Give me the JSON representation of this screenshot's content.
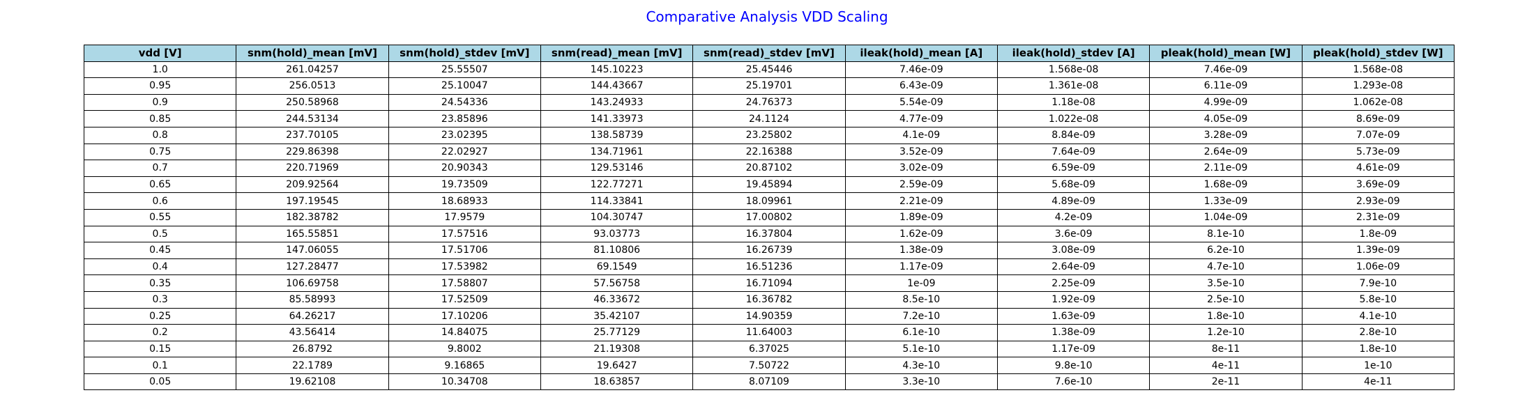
{
  "chart_data": {
    "type": "table",
    "title": "Comparative Analysis VDD Scaling",
    "header_color": "#add8e6",
    "title_color": "#0000ff",
    "columns": [
      "vdd [V]",
      "snm(hold)_mean [mV]",
      "snm(hold)_stdev [mV]",
      "snm(read)_mean [mV]",
      "snm(read)_stdev [mV]",
      "ileak(hold)_mean [A]",
      "ileak(hold)_stdev [A]",
      "pleak(hold)_mean [W]",
      "pleak(hold)_stdev [W]"
    ],
    "rows": [
      [
        "1.0",
        "261.04257",
        "25.55507",
        "145.10223",
        "25.45446",
        "7.46e-09",
        "1.568e-08",
        "7.46e-09",
        "1.568e-08"
      ],
      [
        "0.95",
        "256.0513",
        "25.10047",
        "144.43667",
        "25.19701",
        "6.43e-09",
        "1.361e-08",
        "6.11e-09",
        "1.293e-08"
      ],
      [
        "0.9",
        "250.58968",
        "24.54336",
        "143.24933",
        "24.76373",
        "5.54e-09",
        "1.18e-08",
        "4.99e-09",
        "1.062e-08"
      ],
      [
        "0.85",
        "244.53134",
        "23.85896",
        "141.33973",
        "24.1124",
        "4.77e-09",
        "1.022e-08",
        "4.05e-09",
        "8.69e-09"
      ],
      [
        "0.8",
        "237.70105",
        "23.02395",
        "138.58739",
        "23.25802",
        "4.1e-09",
        "8.84e-09",
        "3.28e-09",
        "7.07e-09"
      ],
      [
        "0.75",
        "229.86398",
        "22.02927",
        "134.71961",
        "22.16388",
        "3.52e-09",
        "7.64e-09",
        "2.64e-09",
        "5.73e-09"
      ],
      [
        "0.7",
        "220.71969",
        "20.90343",
        "129.53146",
        "20.87102",
        "3.02e-09",
        "6.59e-09",
        "2.11e-09",
        "4.61e-09"
      ],
      [
        "0.65",
        "209.92564",
        "19.73509",
        "122.77271",
        "19.45894",
        "2.59e-09",
        "5.68e-09",
        "1.68e-09",
        "3.69e-09"
      ],
      [
        "0.6",
        "197.19545",
        "18.68933",
        "114.33841",
        "18.09961",
        "2.21e-09",
        "4.89e-09",
        "1.33e-09",
        "2.93e-09"
      ],
      [
        "0.55",
        "182.38782",
        "17.9579",
        "104.30747",
        "17.00802",
        "1.89e-09",
        "4.2e-09",
        "1.04e-09",
        "2.31e-09"
      ],
      [
        "0.5",
        "165.55851",
        "17.57516",
        "93.03773",
        "16.37804",
        "1.62e-09",
        "3.6e-09",
        "8.1e-10",
        "1.8e-09"
      ],
      [
        "0.45",
        "147.06055",
        "17.51706",
        "81.10806",
        "16.26739",
        "1.38e-09",
        "3.08e-09",
        "6.2e-10",
        "1.39e-09"
      ],
      [
        "0.4",
        "127.28477",
        "17.53982",
        "69.1549",
        "16.51236",
        "1.17e-09",
        "2.64e-09",
        "4.7e-10",
        "1.06e-09"
      ],
      [
        "0.35",
        "106.69758",
        "17.58807",
        "57.56758",
        "16.71094",
        "1e-09",
        "2.25e-09",
        "3.5e-10",
        "7.9e-10"
      ],
      [
        "0.3",
        "85.58993",
        "17.52509",
        "46.33672",
        "16.36782",
        "8.5e-10",
        "1.92e-09",
        "2.5e-10",
        "5.8e-10"
      ],
      [
        "0.25",
        "64.26217",
        "17.10206",
        "35.42107",
        "14.90359",
        "7.2e-10",
        "1.63e-09",
        "1.8e-10",
        "4.1e-10"
      ],
      [
        "0.2",
        "43.56414",
        "14.84075",
        "25.77129",
        "11.64003",
        "6.1e-10",
        "1.38e-09",
        "1.2e-10",
        "2.8e-10"
      ],
      [
        "0.15",
        "26.8792",
        "9.8002",
        "21.19308",
        "6.37025",
        "5.1e-10",
        "1.17e-09",
        "8e-11",
        "1.8e-10"
      ],
      [
        "0.1",
        "22.1789",
        "9.16865",
        "19.6427",
        "7.50722",
        "4.3e-10",
        "9.8e-10",
        "4e-11",
        "1e-10"
      ],
      [
        "0.05",
        "19.62108",
        "10.34708",
        "18.63857",
        "8.07109",
        "3.3e-10",
        "7.6e-10",
        "2e-11",
        "4e-11"
      ]
    ]
  }
}
